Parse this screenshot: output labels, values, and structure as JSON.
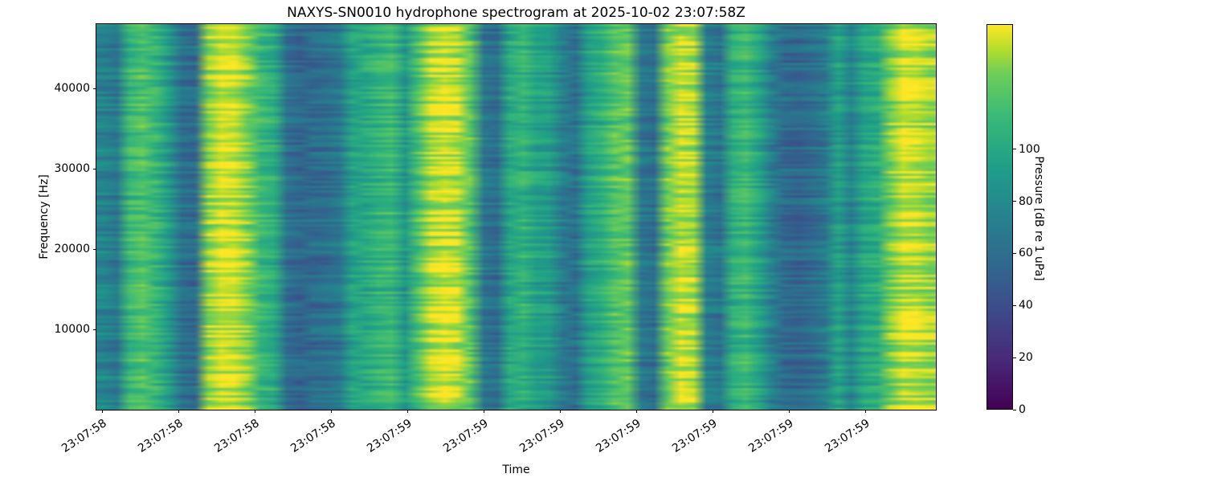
{
  "chart_data": {
    "type": "heatmap",
    "title": "NAXYS-SN0010 hydrophone spectrogram at 2025-10-02 23:07:58Z",
    "xlabel": "Time",
    "ylabel": "Frequency [Hz]",
    "x_tick_labels": [
      "23:07:58",
      "23:07:58",
      "23:07:58",
      "23:07:58",
      "23:07:59",
      "23:07:59",
      "23:07:59",
      "23:07:59",
      "23:07:59",
      "23:07:59",
      "23:07:59"
    ],
    "y_ticks": [
      10000,
      20000,
      30000,
      40000
    ],
    "y_range_hz": [
      0,
      48000
    ],
    "grid": false,
    "legend": "none",
    "colorbar": {
      "label": "Pressure [dB re 1 uPa]",
      "ticks": [
        0,
        20,
        40,
        60,
        80,
        100
      ],
      "range": [
        0,
        148
      ],
      "colormap": "viridis",
      "position": "right"
    },
    "colormap_stops": [
      [
        0.0,
        "#440154"
      ],
      [
        0.125,
        "#482878"
      ],
      [
        0.25,
        "#3e4989"
      ],
      [
        0.375,
        "#31688e"
      ],
      [
        0.5,
        "#26828e"
      ],
      [
        0.625,
        "#1f9e89"
      ],
      [
        0.75,
        "#35b779"
      ],
      [
        0.875,
        "#6ece58"
      ],
      [
        0.9375,
        "#b5de2b"
      ],
      [
        1.0,
        "#fde725"
      ]
    ],
    "time_bins": 64,
    "freq_bins": 160,
    "column_levels_db": [
      75,
      68,
      112,
      120,
      110,
      90,
      62,
      58,
      132,
      144,
      142,
      130,
      112,
      104,
      62,
      55,
      58,
      60,
      66,
      95,
      100,
      108,
      112,
      88,
      118,
      138,
      144,
      140,
      122,
      65,
      60,
      100,
      108,
      95,
      92,
      70,
      62,
      95,
      105,
      120,
      124,
      65,
      60,
      126,
      142,
      138,
      72,
      65,
      105,
      112,
      95,
      70,
      58,
      55,
      60,
      68,
      95,
      75,
      98,
      102,
      128,
      142,
      140,
      134
    ],
    "texture_noise_db": 13,
    "grain_noise_db": 5,
    "noise_seed": 12345
  }
}
